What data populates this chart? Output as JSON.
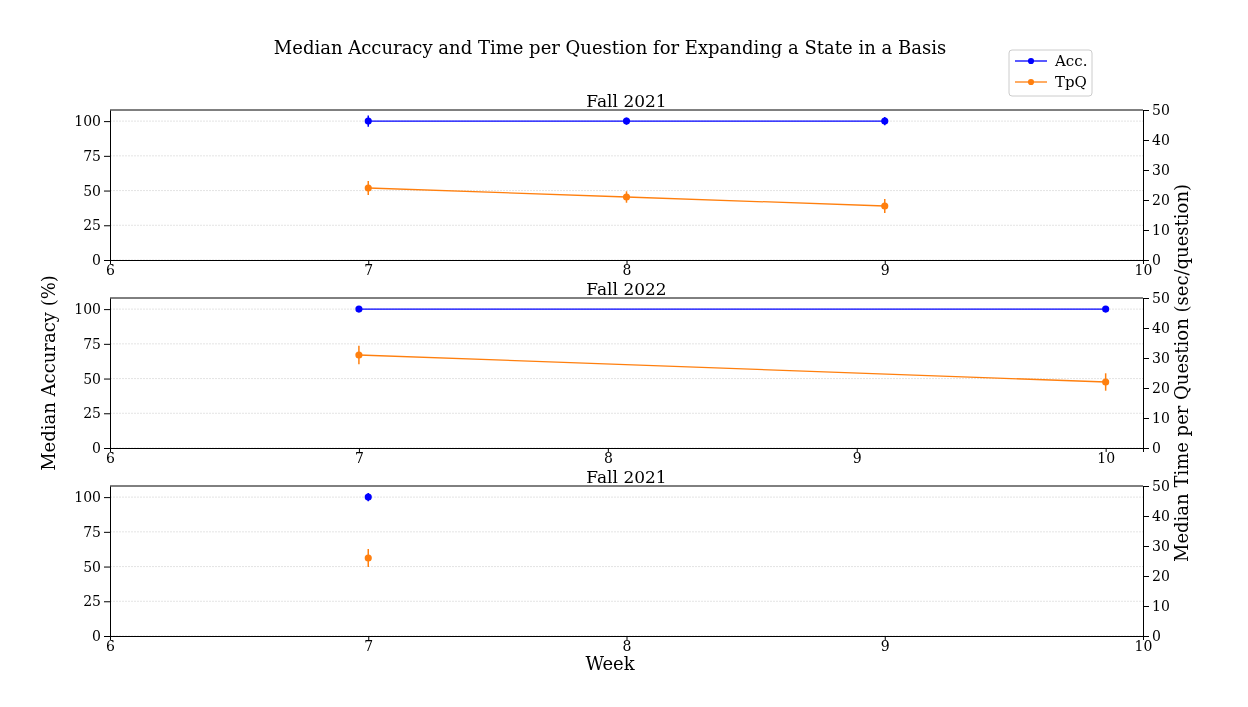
{
  "chart_data": [
    {
      "type": "line",
      "title": "Fall 2021",
      "annotations": [
        "Median Accuracy and Time per Question for Expanding a State in a Basis"
      ],
      "x": [
        7,
        8,
        9
      ],
      "series": [
        {
          "name": "Acc.",
          "color": "#0000ff",
          "values": [
            100,
            100,
            100
          ],
          "errors": [
            4,
            2.5,
            3
          ]
        },
        {
          "name": "TpQ",
          "color": "#ff7f0e",
          "axis": "y2",
          "values": [
            24,
            21,
            18
          ],
          "errors": [
            2.3,
            1.9,
            2.3
          ]
        }
      ],
      "xlim": [
        6,
        10
      ],
      "xticks": [
        6,
        7,
        8,
        9,
        10
      ],
      "ylim": [
        0,
        108
      ],
      "yticks": [
        0,
        25,
        50,
        75,
        100
      ],
      "y2lim": [
        0,
        50
      ],
      "y2ticks": [
        0,
        10,
        20,
        30,
        40,
        50
      ],
      "grid": "y",
      "marker": "circle",
      "legend": "top right"
    },
    {
      "type": "line",
      "title": "Fall 2022",
      "ylabel": "Median Accuracy (%)",
      "y2label": "Median Time per Question (sec/question)",
      "x": [
        7,
        10
      ],
      "series": [
        {
          "color": "#0000ff",
          "values": [
            100,
            100
          ],
          "errors": [
            2,
            2
          ]
        },
        {
          "color": "#ff7f0e",
          "axis": "y2",
          "values": [
            31,
            22
          ],
          "errors": [
            3.1,
            2.9
          ]
        }
      ],
      "xlim": [
        6,
        10.15
      ],
      "xticks": [
        6,
        7,
        8,
        9,
        10
      ],
      "ylim": [
        0,
        108
      ],
      "yticks": [
        0,
        25,
        50,
        75,
        100
      ],
      "y2lim": [
        0,
        50
      ],
      "y2ticks": [
        0,
        10,
        20,
        30,
        40,
        50
      ],
      "grid": "y",
      "marker": "circle"
    },
    {
      "type": "line",
      "title": "Fall 2021",
      "xlabel": "Week",
      "x": [
        7
      ],
      "series": [
        {
          "color": "#0000ff",
          "values": [
            100
          ],
          "errors": [
            3
          ]
        },
        {
          "color": "#ff7f0e",
          "axis": "y2",
          "values": [
            26
          ],
          "errors": [
            3
          ]
        }
      ],
      "xlim": [
        6,
        10
      ],
      "xticks": [
        6,
        7,
        8,
        9,
        10
      ],
      "ylim": [
        0,
        108
      ],
      "yticks": [
        0,
        25,
        50,
        75,
        100
      ],
      "y2lim": [
        0,
        50
      ],
      "y2ticks": [
        0,
        10,
        20,
        30,
        40,
        50
      ],
      "grid": "y",
      "marker": "circle"
    }
  ]
}
